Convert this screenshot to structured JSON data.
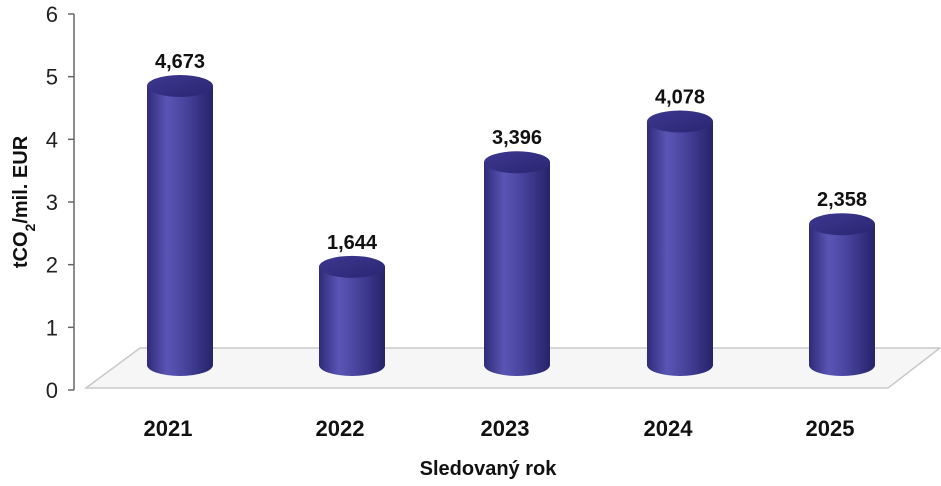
{
  "chart_data": {
    "type": "bar",
    "categories": [
      "2021",
      "2022",
      "2023",
      "2024",
      "2025"
    ],
    "values": [
      4.673,
      1.644,
      3.396,
      4.078,
      2.358
    ],
    "value_labels": [
      "4,673",
      "1,644",
      "3,396",
      "4,078",
      "2,358"
    ],
    "title": "",
    "xlabel": "Sledovaný rok",
    "ylabel_main": "tCO",
    "ylabel_sub": "2",
    "ylabel_rest": "/mil. EUR",
    "ylim": [
      0,
      6
    ],
    "yticks": [
      "0",
      "1",
      "2",
      "3",
      "4",
      "5",
      "6"
    ],
    "grid": false,
    "legend": "none",
    "colors": {
      "bar_fill": "#4a45a0",
      "bar_dark": "#27246a",
      "bar_light": "#6a66c0",
      "floor": "#f6f6f6",
      "floor_stroke": "#c8c8c8",
      "axis": "#666666"
    }
  }
}
